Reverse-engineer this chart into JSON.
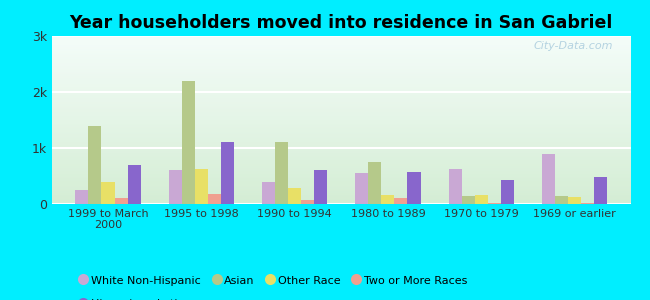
{
  "title": "Year householders moved into residence in San Gabriel",
  "categories": [
    "1999 to March\n2000",
    "1995 to 1998",
    "1990 to 1994",
    "1980 to 1989",
    "1970 to 1979",
    "1969 or earlier"
  ],
  "series_order": [
    "White Non-Hispanic",
    "Asian",
    "Other Race",
    "Two or More Races",
    "Hispanic or Latino"
  ],
  "series": {
    "White Non-Hispanic": [
      250,
      610,
      400,
      555,
      625,
      900
    ],
    "Asian": [
      1400,
      2200,
      1100,
      750,
      150,
      150
    ],
    "Other Race": [
      400,
      620,
      280,
      155,
      155,
      120
    ],
    "Two or More Races": [
      110,
      185,
      65,
      105,
      10,
      10
    ],
    "Hispanic or Latino": [
      700,
      1100,
      600,
      580,
      420,
      480
    ]
  },
  "colors": {
    "White Non-Hispanic": "#c9a8d4",
    "Asian": "#b5c98a",
    "Other Race": "#e8e066",
    "Two or More Races": "#f0a090",
    "Hispanic or Latino": "#8866cc"
  },
  "ylim": [
    0,
    3000
  ],
  "yticks": [
    0,
    1000,
    2000,
    3000
  ],
  "ytick_labels": [
    "0",
    "1k",
    "2k",
    "3k"
  ],
  "background_color": "#00eeff",
  "plot_bg_color": "#e8f5e8",
  "watermark": "City-Data.com",
  "bar_width": 0.14,
  "legend_row1": [
    "White Non-Hispanic",
    "Asian",
    "Other Race",
    "Two or More Races"
  ],
  "legend_row2": [
    "Hispanic or Latino"
  ]
}
